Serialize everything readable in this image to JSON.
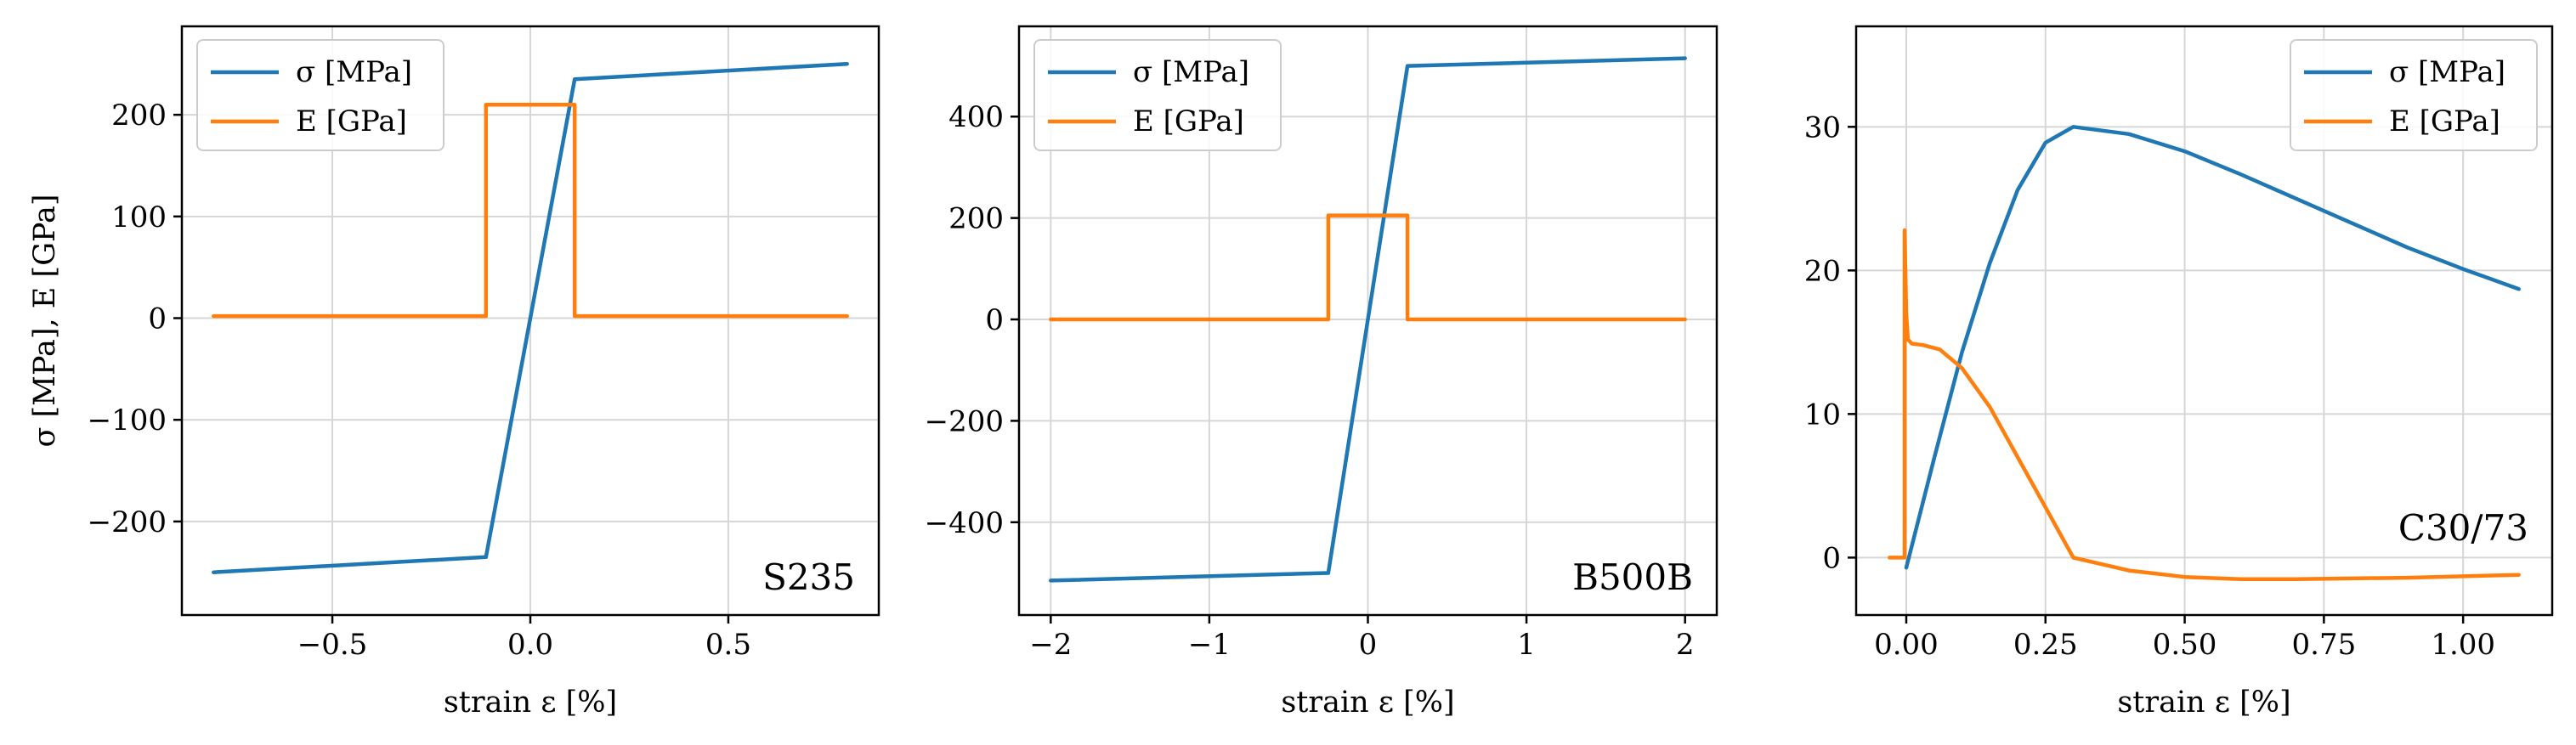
{
  "colors": {
    "sigma": "#1f77b4",
    "E": "#ff7f0e"
  },
  "chart_data": [
    {
      "type": "line",
      "tag": "S235",
      "xlabel": "strain ε [%]",
      "ylabel": "σ [MPa], E [GPa]",
      "xlim": [
        -0.88,
        0.88
      ],
      "ylim": [
        -292,
        287
      ],
      "xticks": [
        -0.5,
        0.0,
        0.5
      ],
      "xtick_labels": [
        "−0.5",
        "0.0",
        "0.5"
      ],
      "yticks": [
        -200,
        -100,
        0,
        100,
        200
      ],
      "ytick_labels": [
        "−200",
        "−100",
        "0",
        "100",
        "200"
      ],
      "grid": true,
      "legend": "top-left",
      "series": [
        {
          "name": "σ [MPa]",
          "color_key": "sigma",
          "x": [
            -0.8,
            -0.112,
            0.112,
            0.8
          ],
          "y": [
            -250,
            -235,
            235,
            250
          ]
        },
        {
          "name": "E [GPa]",
          "color_key": "E",
          "x": [
            -0.8,
            -0.112,
            -0.112,
            0.112,
            0.112,
            0.8
          ],
          "y": [
            2,
            2,
            210,
            210,
            2,
            2
          ]
        }
      ]
    },
    {
      "type": "line",
      "tag": "B500B",
      "xlabel": "strain ε [%]",
      "ylabel": "",
      "xlim": [
        -2.2,
        2.2
      ],
      "ylim": [
        -583,
        578
      ],
      "xticks": [
        -2,
        -1,
        0,
        1,
        2
      ],
      "xtick_labels": [
        "−2",
        "−1",
        "0",
        "1",
        "2"
      ],
      "yticks": [
        -400,
        -200,
        0,
        200,
        400
      ],
      "ytick_labels": [
        "−400",
        "−200",
        "0",
        "200",
        "400"
      ],
      "grid": true,
      "legend": "top-left",
      "series": [
        {
          "name": "σ [MPa]",
          "color_key": "sigma",
          "x": [
            -2.0,
            -0.25,
            0.25,
            2.0
          ],
          "y": [
            -515,
            -500,
            500,
            515
          ]
        },
        {
          "name": "E [GPa]",
          "color_key": "E",
          "x": [
            -2.0,
            -0.25,
            -0.25,
            0.25,
            0.25,
            2.0
          ],
          "y": [
            0,
            0,
            205,
            205,
            0,
            0
          ]
        }
      ]
    },
    {
      "type": "line",
      "tag": "C30/73",
      "xlabel": "strain ε [%]",
      "ylabel": "",
      "xlim": [
        -0.09,
        1.16
      ],
      "ylim": [
        -4,
        37
      ],
      "xticks": [
        0.0,
        0.25,
        0.5,
        0.75,
        1.0
      ],
      "xtick_labels": [
        "0.00",
        "0.25",
        "0.50",
        "0.75",
        "1.00"
      ],
      "yticks": [
        0,
        10,
        20,
        30
      ],
      "ytick_labels": [
        "0",
        "10",
        "20",
        "30"
      ],
      "grid": true,
      "legend": "top-right",
      "series": [
        {
          "name": "σ [MPa]",
          "color_key": "sigma",
          "x": [
            0.0,
            0.05,
            0.1,
            0.15,
            0.2,
            0.25,
            0.3,
            0.4,
            0.5,
            0.6,
            0.7,
            0.8,
            0.9,
            1.0,
            1.1
          ],
          "y": [
            -0.7,
            6.9,
            14.3,
            20.5,
            25.6,
            28.9,
            30.0,
            29.5,
            28.3,
            26.7,
            25.0,
            23.3,
            21.6,
            20.1,
            18.7
          ]
        },
        {
          "name": "E [GPa]",
          "color_key": "E",
          "x": [
            -0.03,
            -0.003,
            -0.003,
            0.0,
            0.003,
            0.01,
            0.03,
            0.06,
            0.1,
            0.15,
            0.2,
            0.25,
            0.3,
            0.4,
            0.5,
            0.6,
            0.7,
            0.8,
            0.9,
            1.0,
            1.1
          ],
          "y": [
            0.0,
            0.0,
            22.8,
            17.0,
            15.2,
            14.9,
            14.8,
            14.5,
            13.2,
            10.5,
            7.0,
            3.5,
            0.0,
            -0.9,
            -1.35,
            -1.5,
            -1.5,
            -1.45,
            -1.4,
            -1.3,
            -1.2
          ]
        }
      ]
    }
  ]
}
